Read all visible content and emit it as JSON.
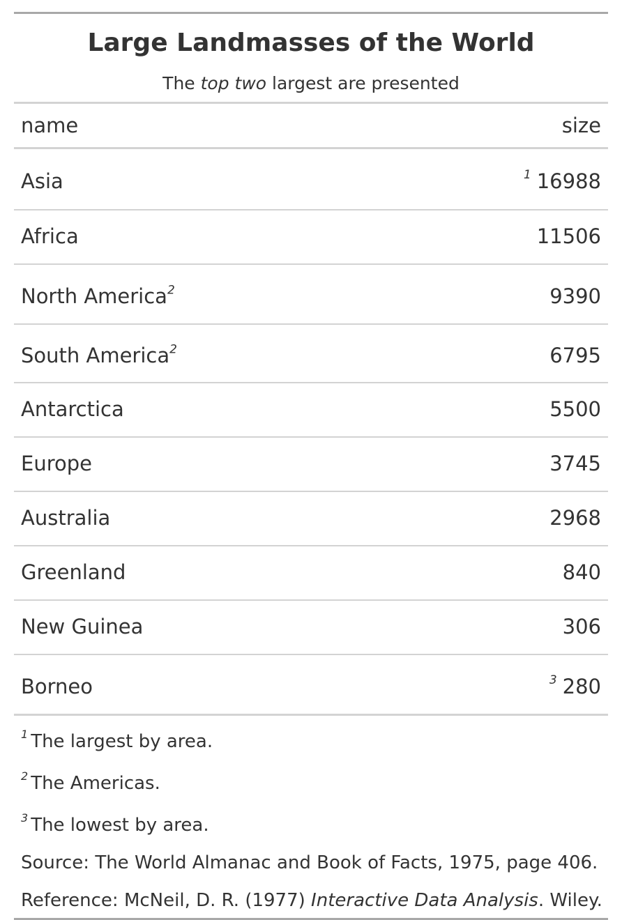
{
  "table": {
    "title": "Large Landmasses of the World",
    "subtitle": {
      "before": "The ",
      "emphasis": "top two",
      "after": " largest are presented"
    },
    "columns": [
      "name",
      "size"
    ],
    "rows": [
      {
        "name": "Asia",
        "size": "16988",
        "size_marker": "1",
        "name_marker": ""
      },
      {
        "name": "Africa",
        "size": "11506",
        "size_marker": "",
        "name_marker": ""
      },
      {
        "name": "North America",
        "size": "9390",
        "size_marker": "",
        "name_marker": "2"
      },
      {
        "name": "South America",
        "size": "6795",
        "size_marker": "",
        "name_marker": "2"
      },
      {
        "name": "Antarctica",
        "size": "5500",
        "size_marker": "",
        "name_marker": ""
      },
      {
        "name": "Europe",
        "size": "3745",
        "size_marker": "",
        "name_marker": ""
      },
      {
        "name": "Australia",
        "size": "2968",
        "size_marker": "",
        "name_marker": ""
      },
      {
        "name": "Greenland",
        "size": "840",
        "size_marker": "",
        "name_marker": ""
      },
      {
        "name": "New Guinea",
        "size": "306",
        "size_marker": "",
        "name_marker": ""
      },
      {
        "name": "Borneo",
        "size": "280",
        "size_marker": "3",
        "name_marker": ""
      }
    ],
    "footnotes": [
      {
        "marker": "1",
        "text": "The largest by area."
      },
      {
        "marker": "2",
        "text": "The Americas."
      },
      {
        "marker": "3",
        "text": "The lowest by area."
      }
    ],
    "source_note": "Source: The World Almanac and Book of Facts, 1975, page 406.",
    "reference": {
      "before": "Reference: McNeil, D. R. (1977) ",
      "italic": "Interactive Data Analysis",
      "after": ". Wiley."
    }
  }
}
